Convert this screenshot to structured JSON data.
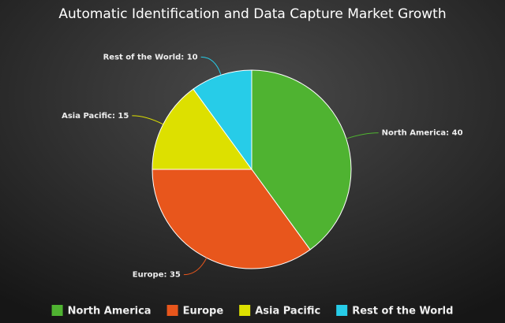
{
  "chart_data": {
    "type": "pie",
    "title": "Automatic Identification and Data Capture Market Growth",
    "categories": [
      "North America",
      "Europe",
      "Asia Pacific",
      "Rest of the World"
    ],
    "values": [
      40,
      35,
      15,
      10
    ],
    "value_labels": [
      "North America: 40",
      "Europe: 35",
      "Asia Pacific: 15",
      "Rest of the World: 10"
    ],
    "colors": [
      "#4fb331",
      "#e8561c",
      "#dde000",
      "#27cce8"
    ],
    "legend": "bottom"
  }
}
